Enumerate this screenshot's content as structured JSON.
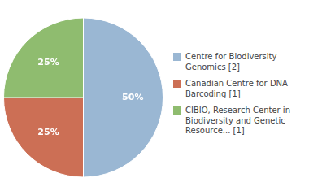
{
  "chart_data": {
    "type": "pie",
    "categories": [
      "Centre for Biodiversity\nGenomics [2]",
      "Canadian Centre for DNA\nBarcoding [1]",
      "CIBIO, Research Center in\nBiodiversity and Genetic\nResource... [1]"
    ],
    "values": [
      50,
      25,
      25
    ],
    "value_labels": [
      "50%",
      "25%",
      "25%"
    ],
    "colors": [
      "#9ab7d3",
      "#cc6f55",
      "#8fbc6f"
    ],
    "data_labels": true,
    "legend": "right"
  }
}
